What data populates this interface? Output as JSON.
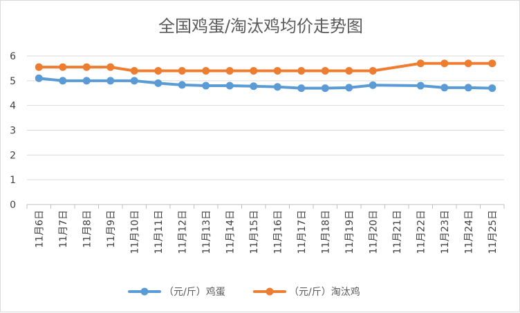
{
  "chart_data": {
    "type": "line",
    "title": "全国鸡蛋/淘汰鸡均价走势图",
    "xlabel": "",
    "ylabel": "",
    "ylim": [
      0,
      6
    ],
    "yticks": [
      0,
      1,
      2,
      3,
      4,
      5,
      6
    ],
    "grid": true,
    "legend_position": "bottom",
    "categories": [
      "11月6日",
      "11月7日",
      "11月8日",
      "11月9日",
      "11月10日",
      "11月11日",
      "11月12日",
      "11月13日",
      "11月14日",
      "11月15日",
      "11月16日",
      "11月17日",
      "11月18日",
      "11月19日",
      "11月20日",
      "11月21日",
      "11月22日",
      "11月23日",
      "11月24日",
      "11月25日"
    ],
    "series": [
      {
        "name": "（元/斤）鸡蛋",
        "color": "#5B9BD5",
        "values": [
          5.1,
          5.0,
          5.0,
          5.0,
          5.0,
          4.9,
          4.83,
          4.8,
          4.8,
          4.78,
          4.75,
          4.7,
          4.7,
          4.72,
          4.82,
          null,
          4.8,
          4.72,
          4.72,
          4.7
        ]
      },
      {
        "name": "（元/斤）淘汰鸡",
        "color": "#ED7D31",
        "values": [
          5.55,
          5.55,
          5.55,
          5.55,
          5.4,
          5.4,
          5.4,
          5.4,
          5.4,
          5.4,
          5.4,
          5.4,
          5.4,
          5.4,
          5.4,
          null,
          5.7,
          5.7,
          5.7,
          5.7
        ]
      }
    ]
  }
}
